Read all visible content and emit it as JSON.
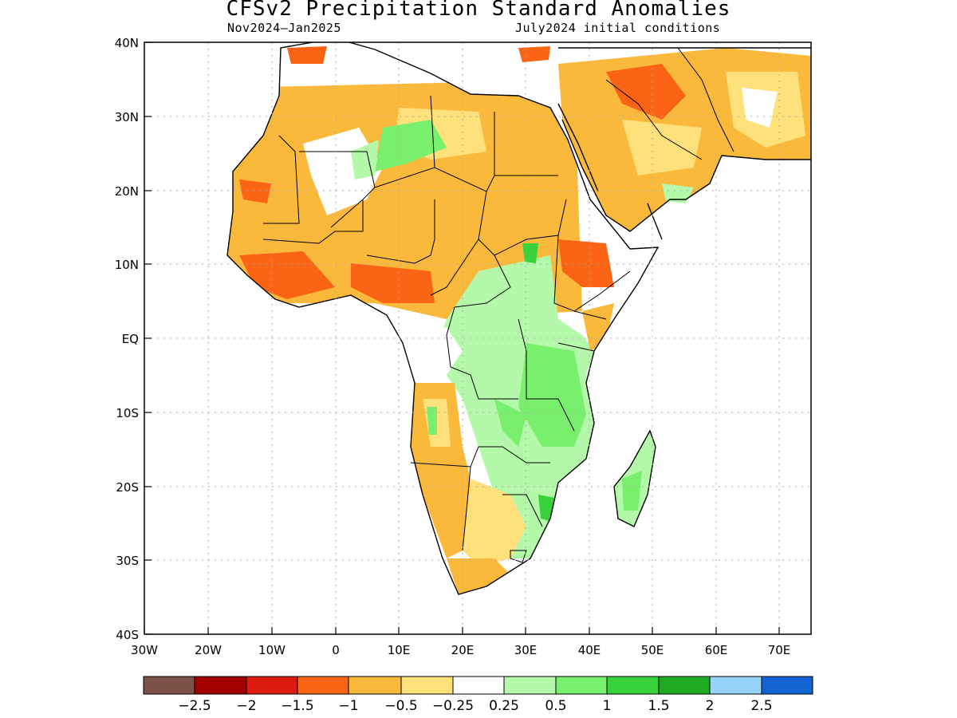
{
  "map": {
    "title": "CFSv2 Precipitation Standard Anomalies",
    "period": "Nov2024–Jan2025",
    "init": "July2024 initial conditions",
    "lat_ticks": [
      "40N",
      "30N",
      "20N",
      "10N",
      "EQ",
      "10S",
      "20S",
      "30S",
      "40S"
    ],
    "lon_ticks": [
      "30W",
      "20W",
      "10W",
      "0",
      "10E",
      "20E",
      "30E",
      "40E",
      "50E",
      "60E",
      "70E"
    ],
    "extent": {
      "lon": [
        -30,
        75
      ],
      "lat": [
        -40,
        40
      ]
    }
  },
  "colorbar": {
    "colors": [
      "#7b5148",
      "#a30000",
      "#dd1b0e",
      "#fa6414",
      "#fbb93c",
      "#fee17b",
      "#ffffff",
      "#b4f9a9",
      "#78f06e",
      "#37d23c",
      "#1faa23",
      "#97d2fa",
      "#1364d2"
    ],
    "labels": [
      "−2.5",
      "−2",
      "−1.5",
      "−1",
      "−0.5",
      "−0.25",
      "0.25",
      "0.5",
      "1",
      "1.5",
      "2",
      "2.5"
    ]
  },
  "legend_colors": {
    "dry_strong": "#fa6414",
    "dry": "#fbb93c",
    "dry_light": "#fee17b",
    "wet_light": "#b4f9a9",
    "wet": "#78f06e",
    "wet_strong": "#37d23c"
  }
}
